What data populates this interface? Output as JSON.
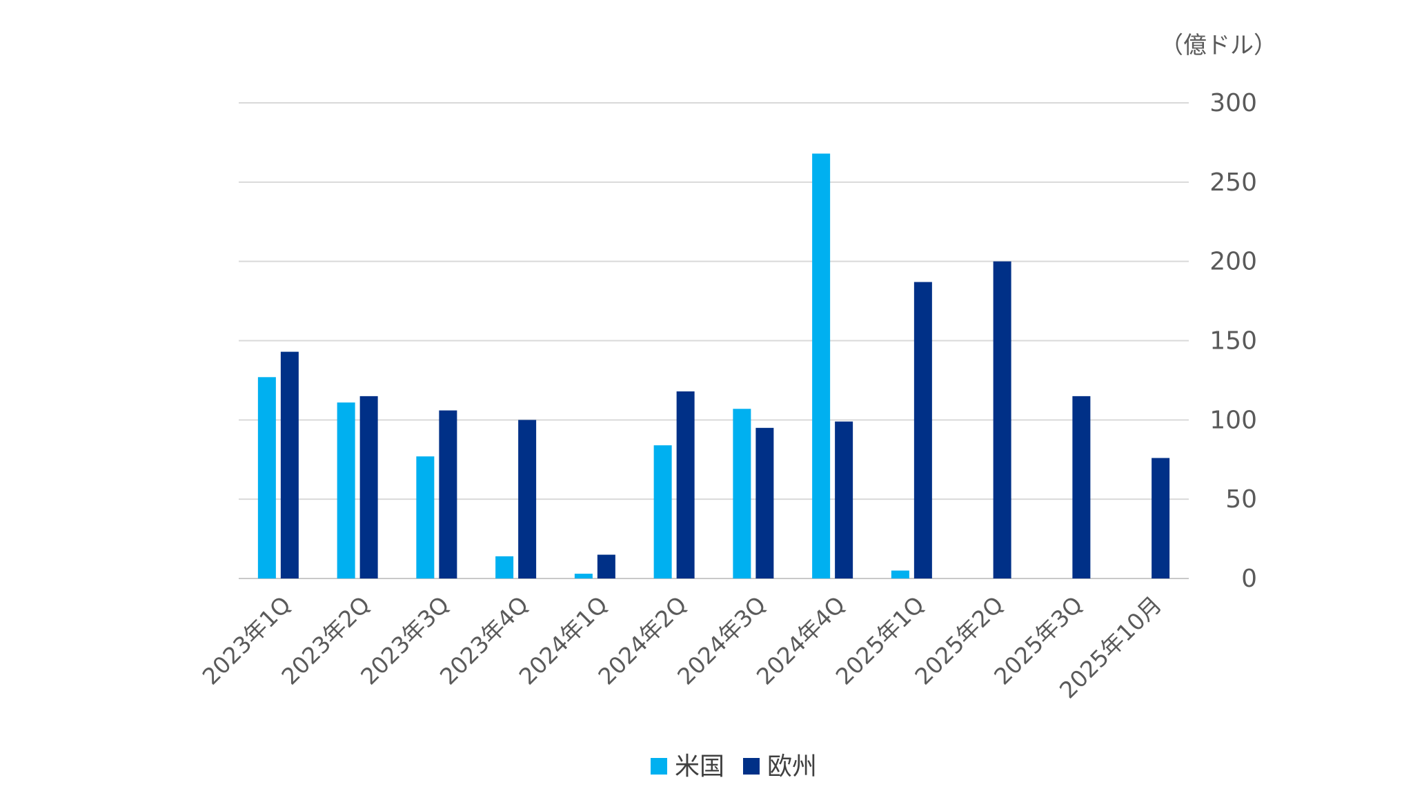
{
  "chart_data": {
    "type": "bar",
    "title": "",
    "xlabel": "",
    "ylabel": "（億ドル）",
    "y_axis_position": "right",
    "ylim": [
      0,
      300
    ],
    "yticks": [
      0,
      50,
      100,
      150,
      200,
      250,
      300
    ],
    "grid": true,
    "legend_position": "bottom-center",
    "categories": [
      "2023年1Q",
      "2023年2Q",
      "2023年3Q",
      "2023年4Q",
      "2024年1Q",
      "2024年2Q",
      "2024年3Q",
      "2024年4Q",
      "2025年1Q",
      "2025年2Q",
      "2025年3Q",
      "2025年10月"
    ],
    "series": [
      {
        "name": "米国",
        "color": "#00b0f0",
        "values": [
          127,
          111,
          77,
          14,
          3,
          84,
          107,
          268,
          5,
          0,
          0,
          0
        ]
      },
      {
        "name": "欧州",
        "color": "#003087",
        "values": [
          143,
          115,
          106,
          100,
          15,
          118,
          95,
          99,
          187,
          200,
          115,
          76
        ]
      }
    ]
  }
}
